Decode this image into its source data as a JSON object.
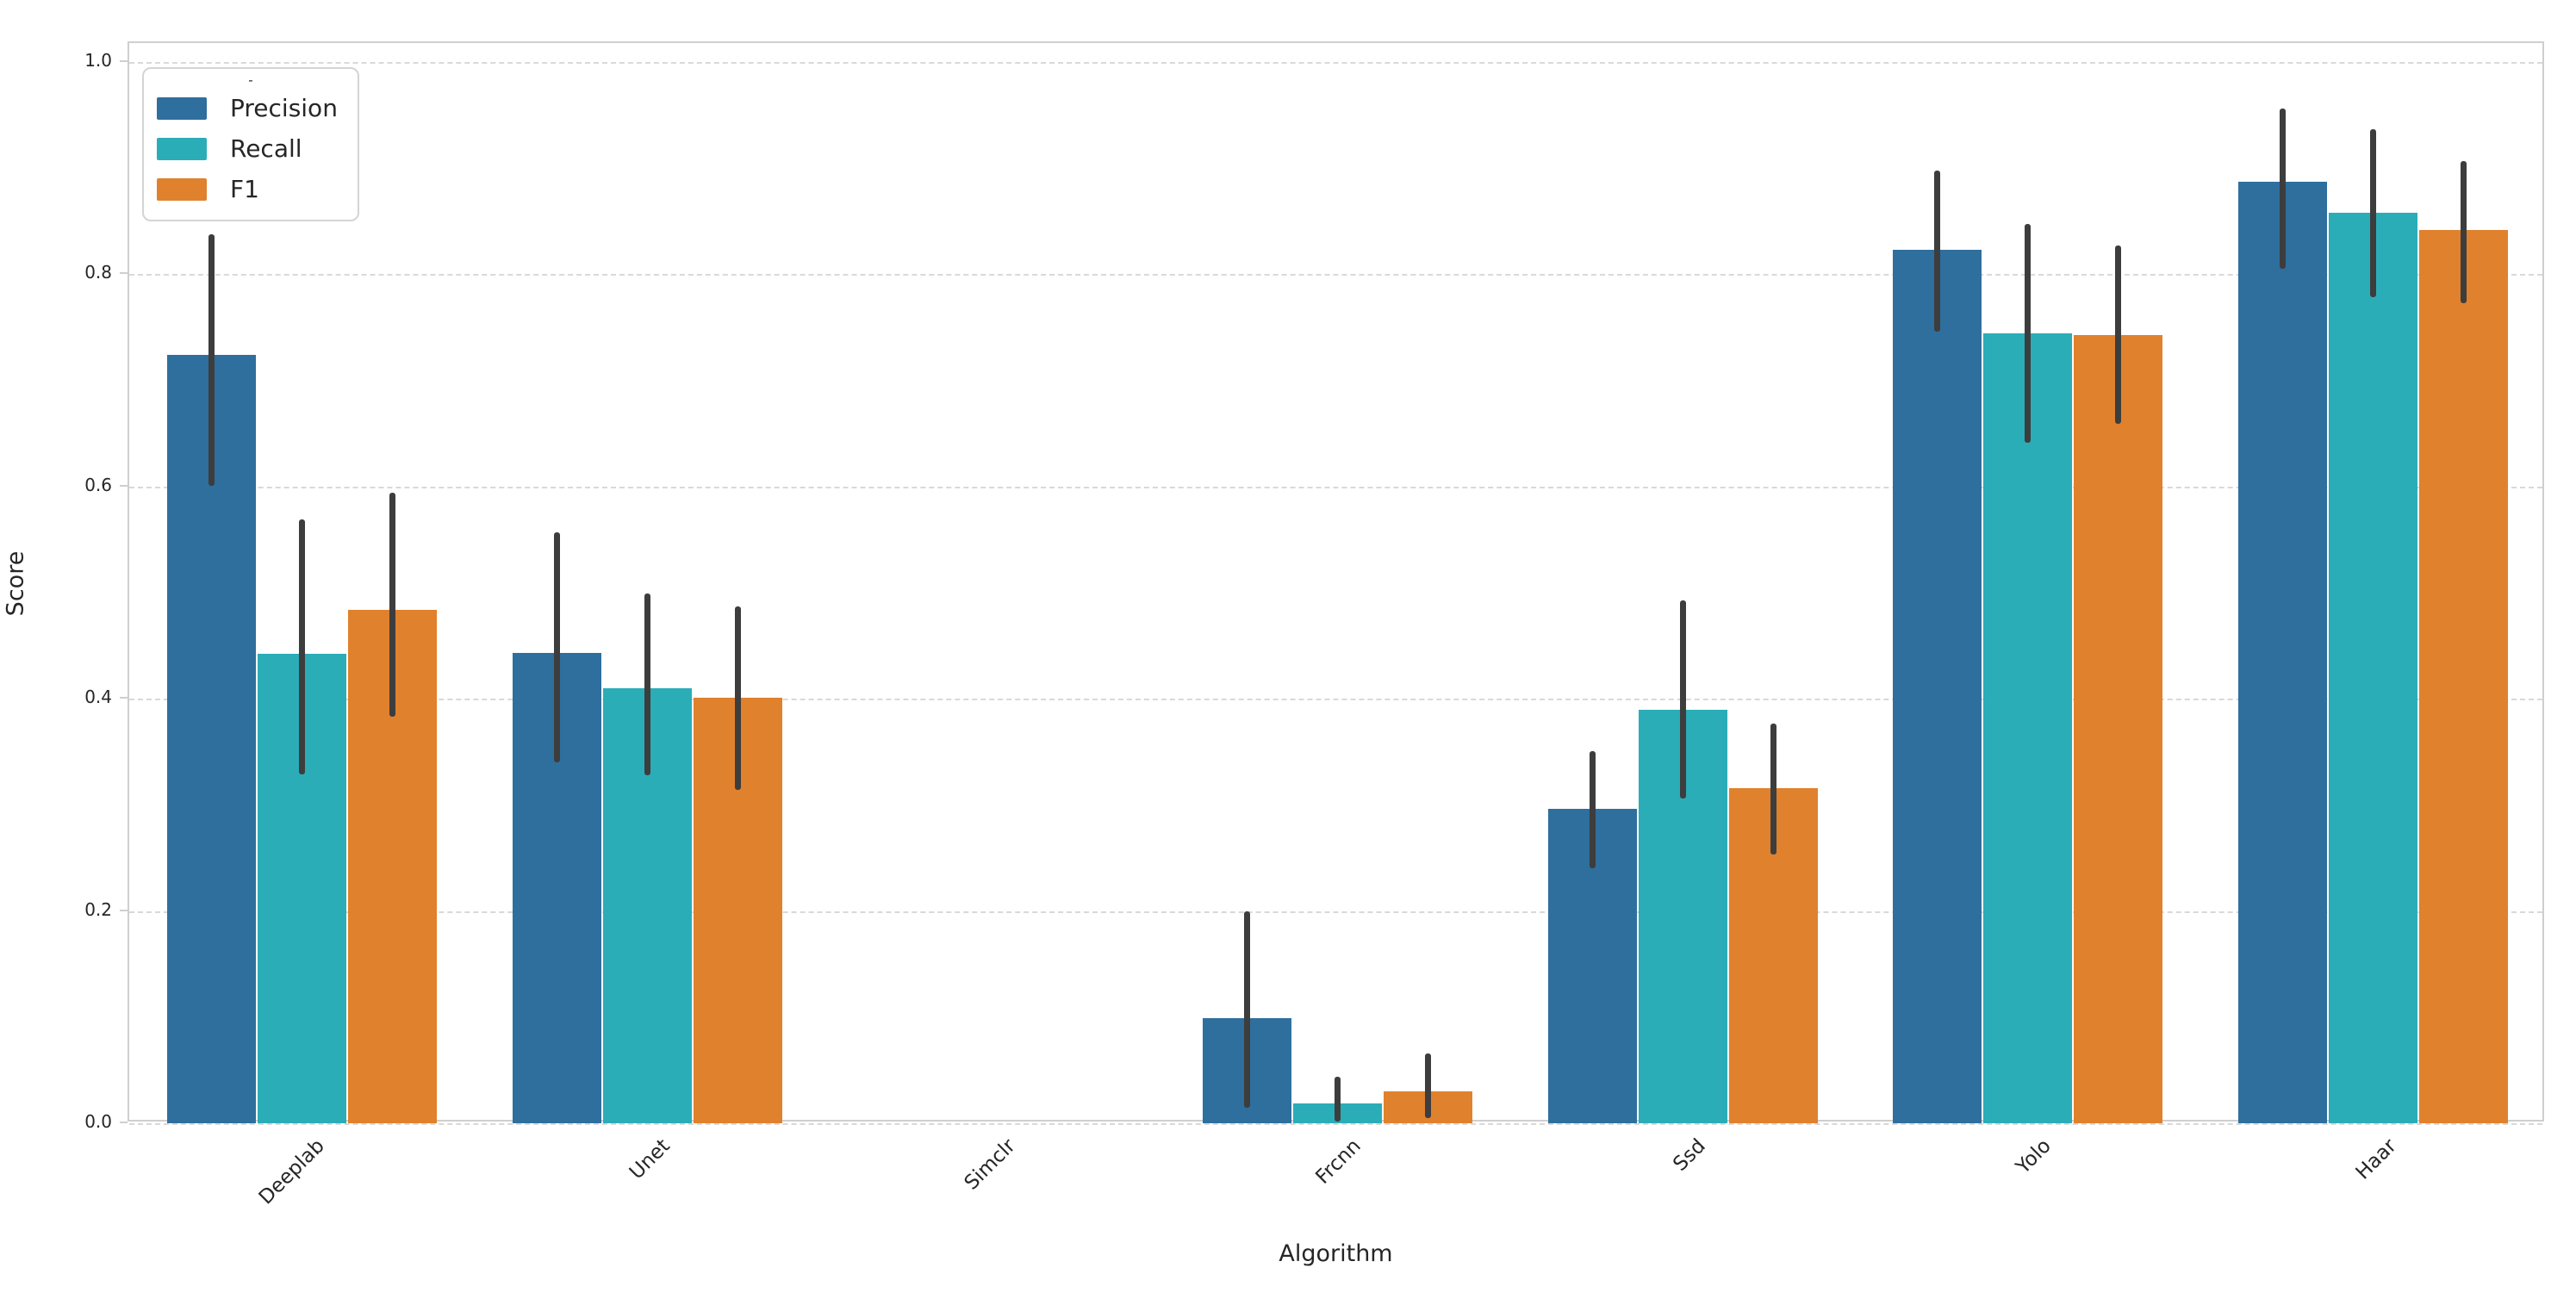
{
  "figure": {
    "background": "#ffffff"
  },
  "styles": {
    "grid_color": "#d9d9d9",
    "spine_color": "#cfcfcf",
    "text_color": "#262626",
    "error_bar_color": "#3d3d3d"
  },
  "chart_data": {
    "type": "bar",
    "title": "",
    "xlabel": "Algorithm",
    "ylabel": "Score",
    "categories": [
      "Deeplab",
      "Unet",
      "Simclr",
      "Frcnn",
      "Ssd",
      "Yolo",
      "Haar"
    ],
    "series": [
      {
        "name": "Precision",
        "color": "#2e6f9e",
        "values": [
          0.724,
          0.443,
          0,
          0.099,
          0.296,
          0.823,
          0.887
        ],
        "err_low": [
          0.601,
          0.34,
          null,
          0.015,
          0.24,
          0.746,
          0.805
        ],
        "err_high": [
          0.838,
          0.557,
          null,
          0.2,
          0.351,
          0.898,
          0.956
        ]
      },
      {
        "name": "Recall",
        "color": "#2badb8",
        "values": [
          0.442,
          0.41,
          0,
          0.019,
          0.39,
          0.744,
          0.858
        ],
        "err_low": [
          0.329,
          0.328,
          null,
          0.002,
          0.306,
          0.641,
          0.778
        ],
        "err_high": [
          0.569,
          0.499,
          null,
          0.044,
          0.493,
          0.847,
          0.937
        ]
      },
      {
        "name": "F1",
        "color": "#e0812d",
        "values": [
          0.484,
          0.401,
          0,
          0.03,
          0.316,
          0.743,
          0.842
        ],
        "err_low": [
          0.383,
          0.314,
          null,
          0.005,
          0.253,
          0.659,
          0.773
        ],
        "err_high": [
          0.594,
          0.487,
          null,
          0.066,
          0.377,
          0.827,
          0.907
        ]
      }
    ],
    "ylim": [
      0,
      1.02
    ],
    "yticks": [
      0,
      0.2,
      0.4,
      0.6,
      0.8,
      1.0
    ],
    "ytick_labels": [
      "0.0",
      "0.2",
      "0.4",
      "0.6",
      "0.8",
      "1.0"
    ],
    "grid": "horizontal-dashed",
    "legend": {
      "title": "-",
      "position": "upper-left",
      "entries": [
        "Precision",
        "Recall",
        "F1"
      ]
    }
  }
}
